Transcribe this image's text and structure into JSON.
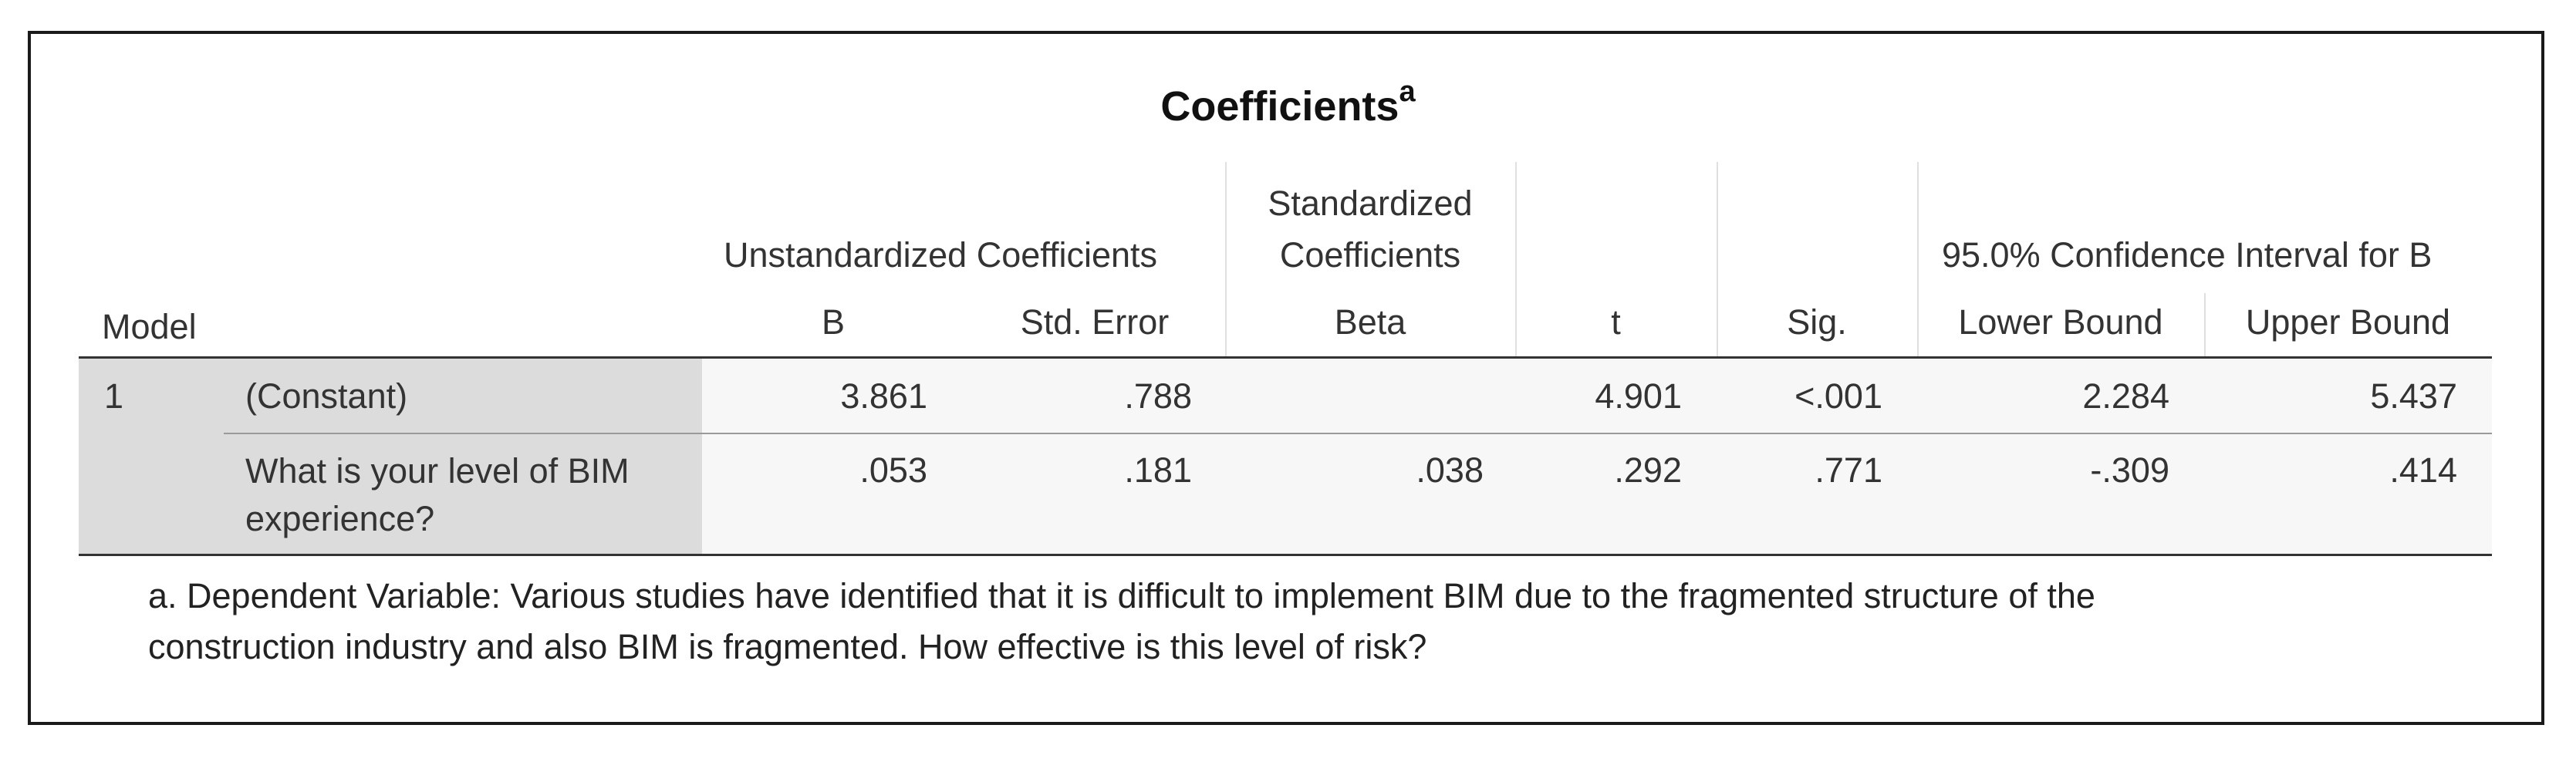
{
  "table": {
    "title": "Coefficients",
    "title_superscript": "a",
    "header": {
      "model": "Model",
      "unstandardized": "Unstandardized Coefficients",
      "standardized_line1": "Standardized",
      "standardized_line2": "Coefficients",
      "ci_group": "95.0% Confidence Interval for B",
      "b": "B",
      "std_error": "Std. Error",
      "beta": "Beta",
      "t": "t",
      "sig": "Sig.",
      "lower_bound": "Lower Bound",
      "upper_bound": "Upper Bound"
    },
    "rows": [
      {
        "model": "1",
        "label": "(Constant)",
        "b": "3.861",
        "std_error": ".788",
        "beta": "",
        "t": "4.901",
        "sig": "<.001",
        "lower": "2.284",
        "upper": "5.437"
      },
      {
        "model": "",
        "label": "What is your level of BIM experience?",
        "b": ".053",
        "std_error": ".181",
        "beta": ".038",
        "t": ".292",
        "sig": ".771",
        "lower": "-.309",
        "upper": ".414"
      }
    ],
    "footnote": "a. Dependent Variable: Various studies have identified that it is difficult to implement BIM due to the fragmented structure of the construction industry and also BIM is fragmented. How effective is this level of risk?"
  }
}
